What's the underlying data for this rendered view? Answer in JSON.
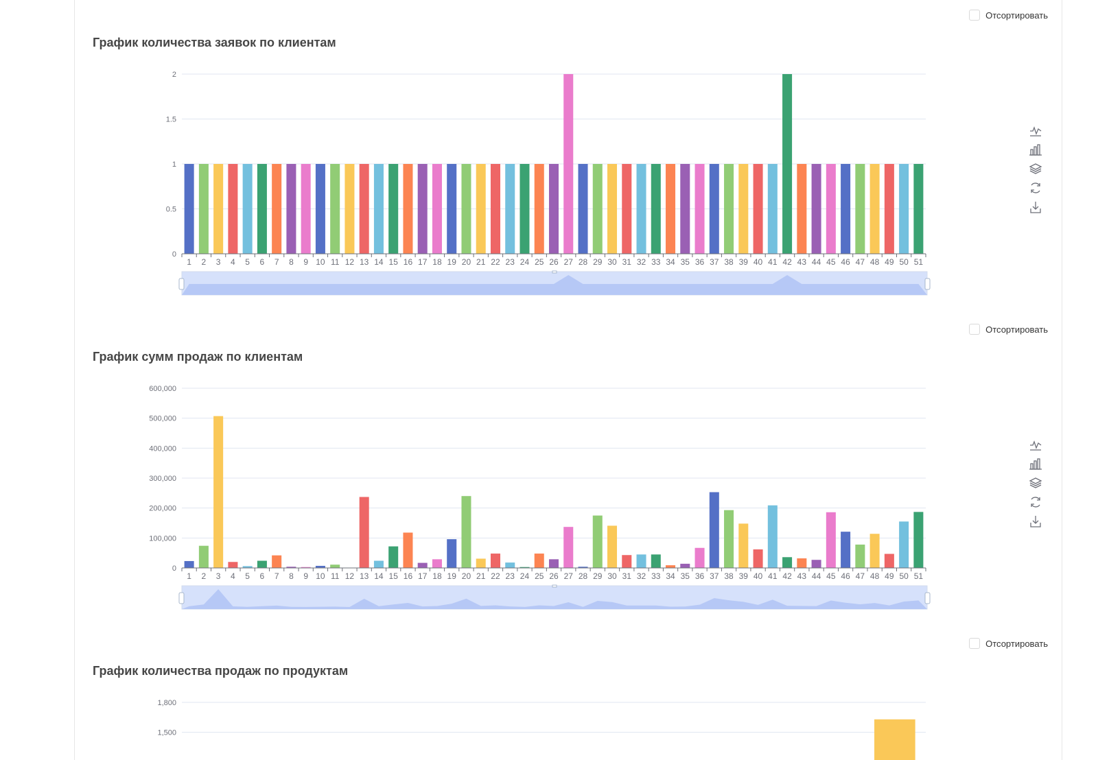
{
  "sort_label": "Отсортировать",
  "colors": [
    "#5470c6",
    "#91cc75",
    "#fac858",
    "#ee6666",
    "#73c0de",
    "#3ba272",
    "#fc8452",
    "#9a60b4",
    "#ea7ccc"
  ],
  "toolbox_icons": [
    "line-chart-icon",
    "bar-chart-icon",
    "stack-icon",
    "restore-icon",
    "download-icon"
  ],
  "chart_data": [
    {
      "type": "bar",
      "title": "График количества заявок по клиентам",
      "categories": [
        "1",
        "2",
        "3",
        "4",
        "5",
        "6",
        "7",
        "8",
        "9",
        "10",
        "11",
        "12",
        "13",
        "14",
        "15",
        "16",
        "17",
        "18",
        "19",
        "20",
        "21",
        "22",
        "23",
        "24",
        "25",
        "26",
        "27",
        "28",
        "29",
        "30",
        "31",
        "32",
        "33",
        "34",
        "35",
        "36",
        "37",
        "38",
        "39",
        "40",
        "41",
        "42",
        "43",
        "44",
        "45",
        "46",
        "47",
        "48",
        "49",
        "50",
        "51"
      ],
      "values": [
        1,
        1,
        1,
        1,
        1,
        1,
        1,
        1,
        1,
        1,
        1,
        1,
        1,
        1,
        1,
        1,
        1,
        1,
        1,
        1,
        1,
        1,
        1,
        1,
        1,
        1,
        2,
        1,
        1,
        1,
        1,
        1,
        1,
        1,
        1,
        1,
        1,
        1,
        1,
        1,
        1,
        2,
        1,
        1,
        1,
        1,
        1,
        1,
        1,
        1,
        1
      ],
      "ylim": [
        0,
        2
      ],
      "yticks": [
        "0",
        "0.5",
        "1",
        "1.5",
        "2"
      ],
      "xlabel": "",
      "ylabel": "",
      "grid": true,
      "datazoom": true
    },
    {
      "type": "bar",
      "title": "График сумм продаж по клиентам",
      "categories": [
        "1",
        "2",
        "3",
        "4",
        "5",
        "6",
        "7",
        "8",
        "9",
        "10",
        "11",
        "12",
        "13",
        "14",
        "15",
        "16",
        "17",
        "18",
        "19",
        "20",
        "21",
        "22",
        "23",
        "24",
        "25",
        "26",
        "27",
        "28",
        "29",
        "30",
        "31",
        "32",
        "33",
        "34",
        "35",
        "36",
        "37",
        "38",
        "39",
        "40",
        "41",
        "42",
        "43",
        "44",
        "45",
        "46",
        "47",
        "48",
        "49",
        "50",
        "51"
      ],
      "values": [
        23000,
        74000,
        507000,
        20000,
        6000,
        24000,
        42000,
        4000,
        3000,
        7000,
        11000,
        1000,
        237000,
        24000,
        72000,
        118000,
        17000,
        29000,
        96000,
        240000,
        31000,
        48000,
        18000,
        3000,
        48000,
        29000,
        137000,
        4000,
        175000,
        141000,
        43000,
        45000,
        45000,
        9000,
        14000,
        67000,
        253000,
        193000,
        148000,
        62000,
        209000,
        36000,
        32000,
        27000,
        186000,
        121000,
        78000,
        114000,
        47000,
        155000,
        187000
      ],
      "ylim": [
        0,
        600000
      ],
      "yticks": [
        "0",
        "100,000",
        "200,000",
        "300,000",
        "400,000",
        "500,000",
        "600,000"
      ],
      "xlabel": "",
      "ylabel": "",
      "grid": true,
      "datazoom": true
    },
    {
      "type": "bar",
      "title": "График количества продаж по продуктам",
      "categories": [
        "",
        "",
        "",
        "",
        "",
        "",
        "",
        "",
        "",
        "",
        "",
        ""
      ],
      "values": [
        0,
        0,
        0,
        0,
        0,
        0,
        0,
        0,
        0,
        0,
        0,
        1630
      ],
      "ylim": [
        0,
        1800
      ],
      "yticks": [
        "1,500",
        "1,800"
      ],
      "xlabel": "",
      "ylabel": "",
      "grid": true,
      "datazoom": false
    }
  ]
}
